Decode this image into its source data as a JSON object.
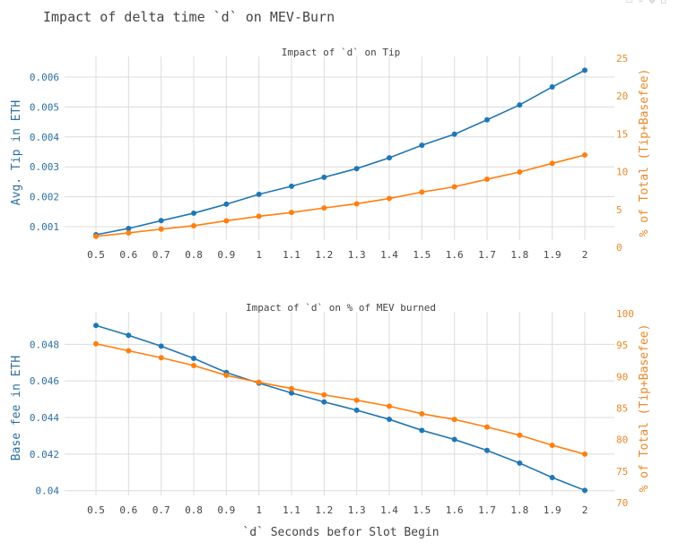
{
  "title": "Impact of delta time `d` on MEV-Burn",
  "colors": {
    "series_left": "#1f77b4",
    "series_right": "#ff7f0e",
    "left_axis_text": "#2e6f9e",
    "right_axis_text": "#e8892a",
    "grid": "#dcdcdc"
  },
  "chart_data": [
    {
      "type": "line",
      "title": "Impact of `d` on Tip",
      "x": [
        0.5,
        0.6,
        0.7,
        0.8,
        0.9,
        1,
        1.1,
        1.2,
        1.3,
        1.4,
        1.5,
        1.6,
        1.7,
        1.8,
        1.9,
        2
      ],
      "x_tick_labels": [
        "0.5",
        "0.6",
        "0.7",
        "0.8",
        "0.9",
        "1",
        "1.1",
        "1.2",
        "1.3",
        "1.4",
        "1.5",
        "1.6",
        "1.7",
        "1.8",
        "1.9",
        "2"
      ],
      "xlabel": "",
      "ylabel": "Avg. Tip in ETH",
      "ylim": [
        0.00031,
        0.00663
      ],
      "y_ticks": [
        0.001,
        0.002,
        0.003,
        0.004,
        0.005,
        0.006
      ],
      "y_tick_labels": [
        "0.001",
        "0.002",
        "0.003",
        "0.004",
        "0.005",
        "0.006"
      ],
      "y2label": "% of Total (Tip+Basefee)",
      "y2lim": [
        0,
        25
      ],
      "y2_ticks": [
        0,
        5,
        10,
        15,
        20,
        25
      ],
      "y2_tick_labels": [
        "0",
        "5",
        "10",
        "15",
        "20",
        "25"
      ],
      "grid": true,
      "series": [
        {
          "axis": "left",
          "values": [
            0.00073,
            0.00094,
            0.0012,
            0.00145,
            0.00175,
            0.00208,
            0.00235,
            0.00265,
            0.00294,
            0.0033,
            0.00372,
            0.00409,
            0.00457,
            0.00507,
            0.00567,
            0.00623
          ]
        },
        {
          "axis": "right",
          "values": [
            1.45,
            1.9,
            2.4,
            2.85,
            3.5,
            4.1,
            4.6,
            5.2,
            5.75,
            6.45,
            7.3,
            8.0,
            9.0,
            9.95,
            11.1,
            12.2
          ]
        }
      ]
    },
    {
      "type": "line",
      "title": "Impact of `d` on % of MEV burned",
      "x": [
        0.5,
        0.6,
        0.7,
        0.8,
        0.9,
        1,
        1.1,
        1.2,
        1.3,
        1.4,
        1.5,
        1.6,
        1.7,
        1.8,
        1.9,
        2
      ],
      "x_tick_labels": [
        "0.5",
        "0.6",
        "0.7",
        "0.8",
        "0.9",
        "1",
        "1.1",
        "1.2",
        "1.3",
        "1.4",
        "1.5",
        "1.6",
        "1.7",
        "1.8",
        "1.9",
        "2"
      ],
      "xlabel": "`d` Seconds befor Slot Begin",
      "ylabel": "Base fee in ETH",
      "ylim": [
        0.03935,
        0.04968
      ],
      "y_ticks": [
        0.04,
        0.042,
        0.044,
        0.046,
        0.048
      ],
      "y_tick_labels": [
        "0.04",
        "0.042",
        "0.044",
        "0.046",
        "0.048"
      ],
      "y2label": "% of Total (Tip+Basefee)",
      "y2lim": [
        70,
        100
      ],
      "y2_ticks": [
        70,
        75,
        80,
        85,
        90,
        95,
        100
      ],
      "y2_tick_labels": [
        "70",
        "75",
        "80",
        "85",
        "90",
        "95",
        "100"
      ],
      "grid": true,
      "series": [
        {
          "axis": "left",
          "values": [
            0.04903,
            0.04849,
            0.0479,
            0.04723,
            0.04646,
            0.04588,
            0.04534,
            0.04485,
            0.0444,
            0.0439,
            0.0433,
            0.0428,
            0.0422,
            0.04151,
            0.04072,
            0.04002
          ]
        },
        {
          "axis": "right",
          "values": [
            95.2,
            94.1,
            93.0,
            91.75,
            90.2,
            89.1,
            88.1,
            87.1,
            86.25,
            85.3,
            84.1,
            83.2,
            82.0,
            80.7,
            79.1,
            77.7
          ]
        }
      ]
    }
  ]
}
